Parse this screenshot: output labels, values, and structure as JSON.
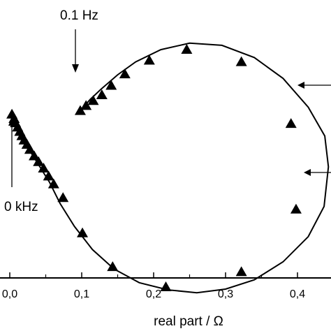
{
  "chart_data": {
    "type": "scatter",
    "title": "",
    "xlabel": "real part / Ω",
    "ylabel": "",
    "xlim": [
      -0.01,
      0.45
    ],
    "ylim": [
      -0.26,
      0.16
    ],
    "x_ticks": [
      0.0,
      0.1,
      0.2,
      0.3,
      0.4
    ],
    "x_tick_labels": [
      "0,0",
      "0,1",
      "0,2",
      "0,3",
      "0,4"
    ],
    "grid": false,
    "legend": "none",
    "series": [
      {
        "marker": "triangle",
        "color": "#000000",
        "points": [
          [
            0.003,
            0.008
          ],
          [
            0.006,
            0.002
          ],
          [
            0.008,
            -0.004
          ],
          [
            0.011,
            -0.01
          ],
          [
            0.014,
            -0.016
          ],
          [
            0.017,
            -0.022
          ],
          [
            0.02,
            -0.028
          ],
          [
            0.024,
            -0.034
          ],
          [
            0.028,
            -0.041
          ],
          [
            0.034,
            -0.05
          ],
          [
            0.04,
            -0.058
          ],
          [
            0.047,
            -0.067
          ],
          [
            0.054,
            -0.078
          ],
          [
            0.061,
            -0.089
          ],
          [
            0.074,
            -0.108
          ],
          [
            0.101,
            -0.157
          ],
          [
            0.143,
            -0.204
          ],
          [
            0.217,
            -0.232
          ],
          [
            0.322,
            -0.211
          ],
          [
            0.398,
            -0.124
          ],
          [
            0.391,
            -0.005
          ],
          [
            0.322,
            0.081
          ],
          [
            0.246,
            0.098
          ],
          [
            0.194,
            0.083
          ],
          [
            0.16,
            0.064
          ],
          [
            0.141,
            0.048
          ],
          [
            0.128,
            0.035
          ],
          [
            0.116,
            0.027
          ],
          [
            0.106,
            0.02
          ],
          [
            0.098,
            0.013
          ]
        ]
      },
      {
        "type": "line",
        "color": "#000000",
        "points": [
          [
            0.098,
            0.013
          ],
          [
            0.112,
            0.029
          ],
          [
            0.128,
            0.044
          ],
          [
            0.15,
            0.063
          ],
          [
            0.175,
            0.081
          ],
          [
            0.21,
            0.098
          ],
          [
            0.25,
            0.107
          ],
          [
            0.295,
            0.104
          ],
          [
            0.34,
            0.087
          ],
          [
            0.38,
            0.058
          ],
          [
            0.415,
            0.018
          ],
          [
            0.438,
            -0.022
          ],
          [
            0.443,
            -0.065
          ],
          [
            0.437,
            -0.12
          ],
          [
            0.415,
            -0.162
          ],
          [
            0.38,
            -0.197
          ],
          [
            0.34,
            -0.222
          ],
          [
            0.3,
            -0.235
          ],
          [
            0.26,
            -0.24
          ],
          [
            0.22,
            -0.236
          ],
          [
            0.18,
            -0.226
          ],
          [
            0.145,
            -0.207
          ],
          [
            0.115,
            -0.18
          ],
          [
            0.09,
            -0.148
          ],
          [
            0.07,
            -0.116
          ],
          [
            0.055,
            -0.086
          ],
          [
            0.04,
            -0.062
          ],
          [
            0.02,
            -0.03
          ],
          [
            0.006,
            -0.004
          ]
        ]
      }
    ],
    "annotations": [
      {
        "text": "0.1 Hz"
      },
      {
        "text": "0 kHz"
      }
    ]
  }
}
